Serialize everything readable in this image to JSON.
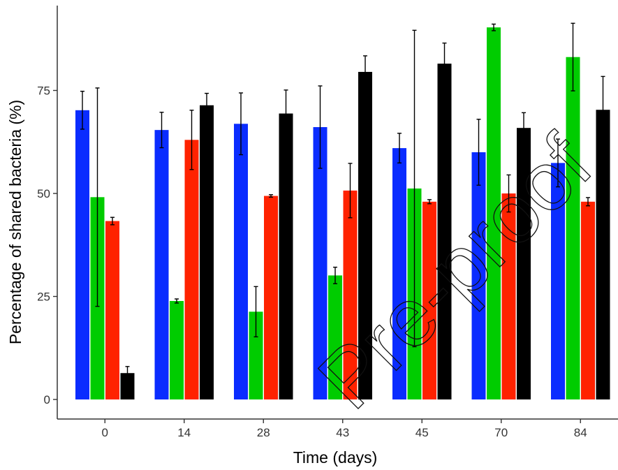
{
  "chart_data": {
    "type": "bar",
    "categories": [
      "0",
      "14",
      "28",
      "43",
      "45",
      "70",
      "84"
    ],
    "series": [
      {
        "color": "#0a2cff",
        "values": [
          70.2,
          65.4,
          66.9,
          66.1,
          61.0,
          60.0,
          57.4
        ],
        "errors": [
          4.6,
          4.3,
          7.5,
          10.0,
          3.6,
          8.0,
          5.8
        ]
      },
      {
        "color": "#00cc00",
        "values": [
          49.1,
          23.9,
          21.3,
          30.1,
          51.2,
          90.3,
          83.1
        ],
        "errors": [
          26.5,
          0.5,
          6.1,
          2.0,
          38.4,
          0.8,
          8.2
        ]
      },
      {
        "color": "#ff2200",
        "values": [
          43.3,
          63.0,
          49.4,
          50.7,
          48.0,
          50.0,
          48.0
        ],
        "errors": [
          0.9,
          7.2,
          0.3,
          6.6,
          0.5,
          4.5,
          1.0
        ]
      },
      {
        "color": "#000000",
        "values": [
          6.4,
          71.4,
          69.4,
          79.5,
          81.5,
          65.9,
          70.3
        ],
        "errors": [
          1.6,
          2.9,
          5.7,
          3.9,
          5.0,
          3.7,
          8.1
        ]
      }
    ],
    "xlabel": "Time (days)",
    "ylabel": "Percentage of shared bacteria (%)",
    "yticks": [
      0,
      25,
      50,
      75
    ],
    "ylim": [
      0,
      96
    ],
    "grid": false,
    "legend": "none"
  },
  "watermark": {
    "text": "Pre-proof"
  }
}
